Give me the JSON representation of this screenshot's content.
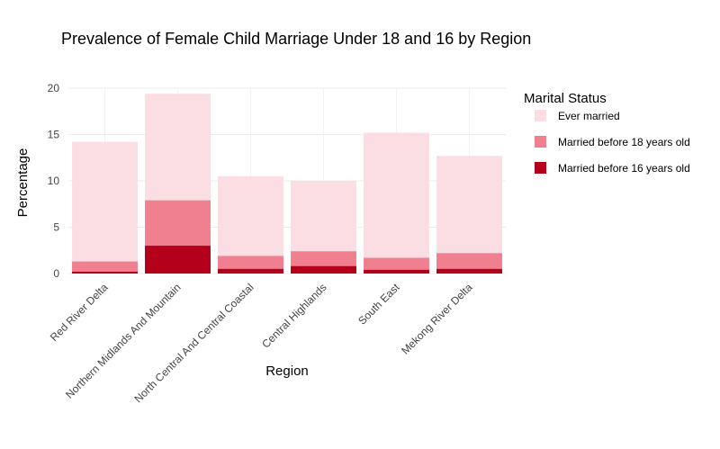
{
  "chart_data": {
    "type": "bar",
    "title": "Prevalence of Female Child Marriage Under 18 and 16 by Region",
    "xlabel": "Region",
    "ylabel": "Percentage",
    "ylim": [
      0,
      20
    ],
    "yticks": [
      0,
      5,
      10,
      15,
      20
    ],
    "grid": true,
    "legend_title": "Marital Status",
    "legend_position": "top-right",
    "categories": [
      "Red River Delta",
      "Northern Midlands And Mountain",
      "North Central And Central Coastal",
      "Central Highlands",
      "South East",
      "Mekong River Delta"
    ],
    "series": [
      {
        "name": "Ever married",
        "color": "#fbdee3",
        "values": [
          14.2,
          19.4,
          10.5,
          10.0,
          15.2,
          12.7
        ]
      },
      {
        "name": "Married before 18 years old",
        "color": "#f08090",
        "values": [
          1.3,
          7.9,
          1.9,
          2.4,
          1.7,
          2.2
        ]
      },
      {
        "name": "Married before 16 years old",
        "color": "#b5001c",
        "values": [
          0.2,
          3.0,
          0.5,
          0.8,
          0.4,
          0.5
        ]
      }
    ]
  }
}
